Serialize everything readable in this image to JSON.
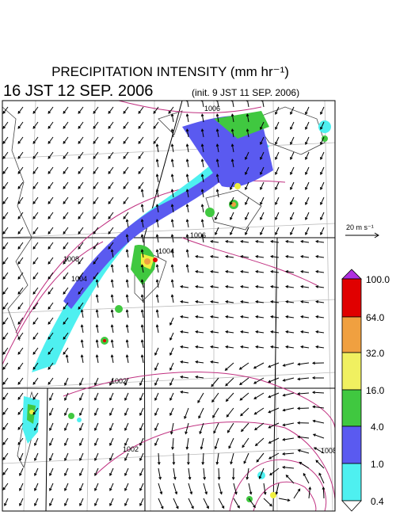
{
  "header": {
    "title": "PRECIPITATION INTENSITY (mm hr⁻¹)",
    "valid_time": "16 JST 12 SEP. 2006",
    "init_time": "(init. 9 JST 11 SEP. 2006)"
  },
  "wind_scale": {
    "label": "20 m s⁻¹"
  },
  "colorbar": {
    "labels": [
      "100.0",
      "64.0",
      "32.0",
      "16.0",
      "4.0",
      "1.0",
      "0.4"
    ]
  },
  "isobar_labels": [
    "1006",
    "1004",
    "1008",
    "1006",
    "1004",
    "1002",
    "1002",
    "1008"
  ]
}
